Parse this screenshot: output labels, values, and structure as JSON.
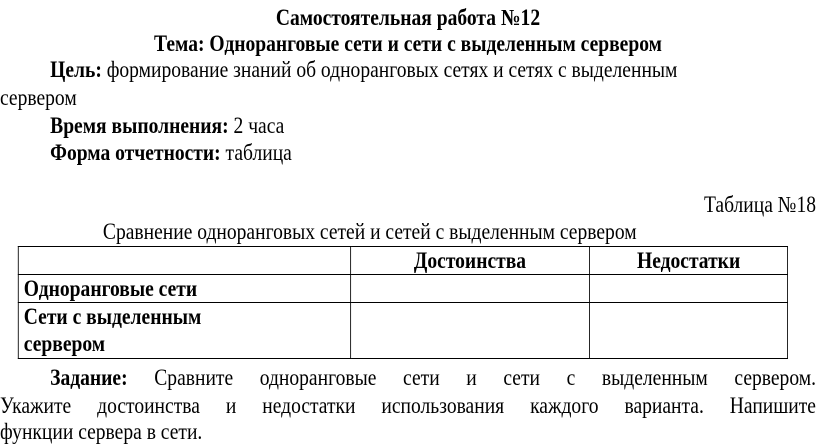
{
  "title": "Самостоятельная работа №12",
  "topic": "Тема: Одноранговые сети и сети с выделенным сервером",
  "goal": {
    "label": "Цель:",
    "text_line1": " формирование знаний об одноранговых сетях и сетях с выделенным",
    "text_line2": "сервером"
  },
  "time": {
    "label": "Время выполнения:",
    "value": " 2 часа"
  },
  "report": {
    "label": "Форма отчетности:",
    "value": " таблица"
  },
  "table_number": "Таблица №18",
  "table_caption": "Сравнение одноранговых сетей и сетей с выделенным сервером",
  "table": {
    "headers": [
      "",
      "Достоинства",
      "Недостатки"
    ],
    "rows": [
      {
        "label": "Одноранговые сети",
        "cells": [
          "",
          ""
        ]
      },
      {
        "label": "Сети с выделенным сервером",
        "cells": [
          "",
          ""
        ]
      }
    ]
  },
  "task": {
    "label": "Задание:",
    "line1": " Сравните одноранговые сети и сети с выделенным сервером.",
    "line2": "Укажите достоинства и недостатки использования каждого варианта. Напишите",
    "line3": "функции сервера в сети."
  }
}
